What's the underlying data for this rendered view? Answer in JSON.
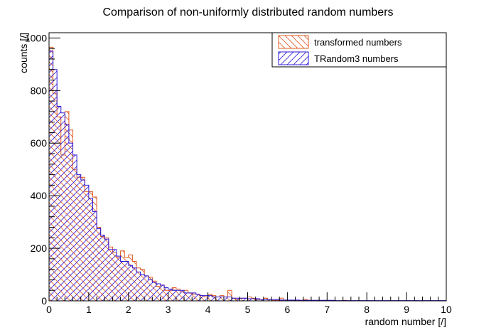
{
  "chart_data": {
    "type": "bar",
    "title": "Comparison of non-uniformly distributed random numbers",
    "xlabel": "random number [/]",
    "ylabel": "counts [/]",
    "xlim": [
      0,
      10
    ],
    "ylim": [
      0,
      1020
    ],
    "x_ticks": [
      "0",
      "1",
      "2",
      "3",
      "4",
      "5",
      "6",
      "7",
      "8",
      "9",
      "10"
    ],
    "y_ticks": [
      "0",
      "200",
      "400",
      "600",
      "800",
      "1000"
    ],
    "y_tick_values": [
      0,
      200,
      400,
      600,
      800,
      1000
    ],
    "grid": false,
    "legend_position": "top-right",
    "bin_width": 0.1,
    "series": [
      {
        "name": "transformed numbers",
        "color": "#e0581e",
        "hatch": "diagonal-down",
        "values": [
          965,
          790,
          700,
          555,
          720,
          650,
          500,
          470,
          470,
          415,
          415,
          395,
          280,
          245,
          240,
          205,
          185,
          165,
          190,
          165,
          175,
          150,
          125,
          120,
          95,
          90,
          75,
          55,
          60,
          40,
          40,
          50,
          45,
          35,
          40,
          30,
          25,
          25,
          20,
          15,
          25,
          20,
          15,
          20,
          15,
          40,
          10,
          5,
          10,
          10,
          15,
          10,
          5,
          5,
          10,
          5,
          2,
          2,
          10,
          2,
          2,
          2,
          2,
          2,
          5,
          2,
          2,
          2,
          0,
          2,
          2,
          0,
          0,
          0,
          2,
          0,
          0,
          0,
          0,
          0,
          0,
          0,
          0,
          0,
          0,
          0,
          0,
          0,
          0,
          0,
          0,
          0,
          0,
          0,
          0,
          0,
          0,
          0,
          0,
          0
        ]
      },
      {
        "name": "TRandom3 numbers",
        "color": "#2b16d8",
        "hatch": "diagonal-up",
        "values": [
          950,
          880,
          740,
          715,
          670,
          600,
          555,
          480,
          460,
          440,
          390,
          340,
          275,
          250,
          235,
          195,
          195,
          170,
          150,
          150,
          135,
          125,
          110,
          100,
          95,
          80,
          70,
          65,
          60,
          50,
          45,
          40,
          40,
          40,
          30,
          30,
          30,
          25,
          20,
          20,
          20,
          15,
          15,
          15,
          15,
          15,
          10,
          10,
          10,
          10,
          8,
          8,
          8,
          5,
          5,
          5,
          5,
          5,
          3,
          3,
          3,
          3,
          3,
          2,
          2,
          2,
          2,
          2,
          2,
          2,
          2,
          2,
          1,
          1,
          1,
          1,
          1,
          1,
          1,
          1,
          1,
          1,
          1,
          1,
          1,
          1,
          1,
          1,
          1,
          1,
          1,
          1,
          1,
          1,
          1,
          1,
          1,
          1,
          1,
          1
        ]
      }
    ]
  }
}
